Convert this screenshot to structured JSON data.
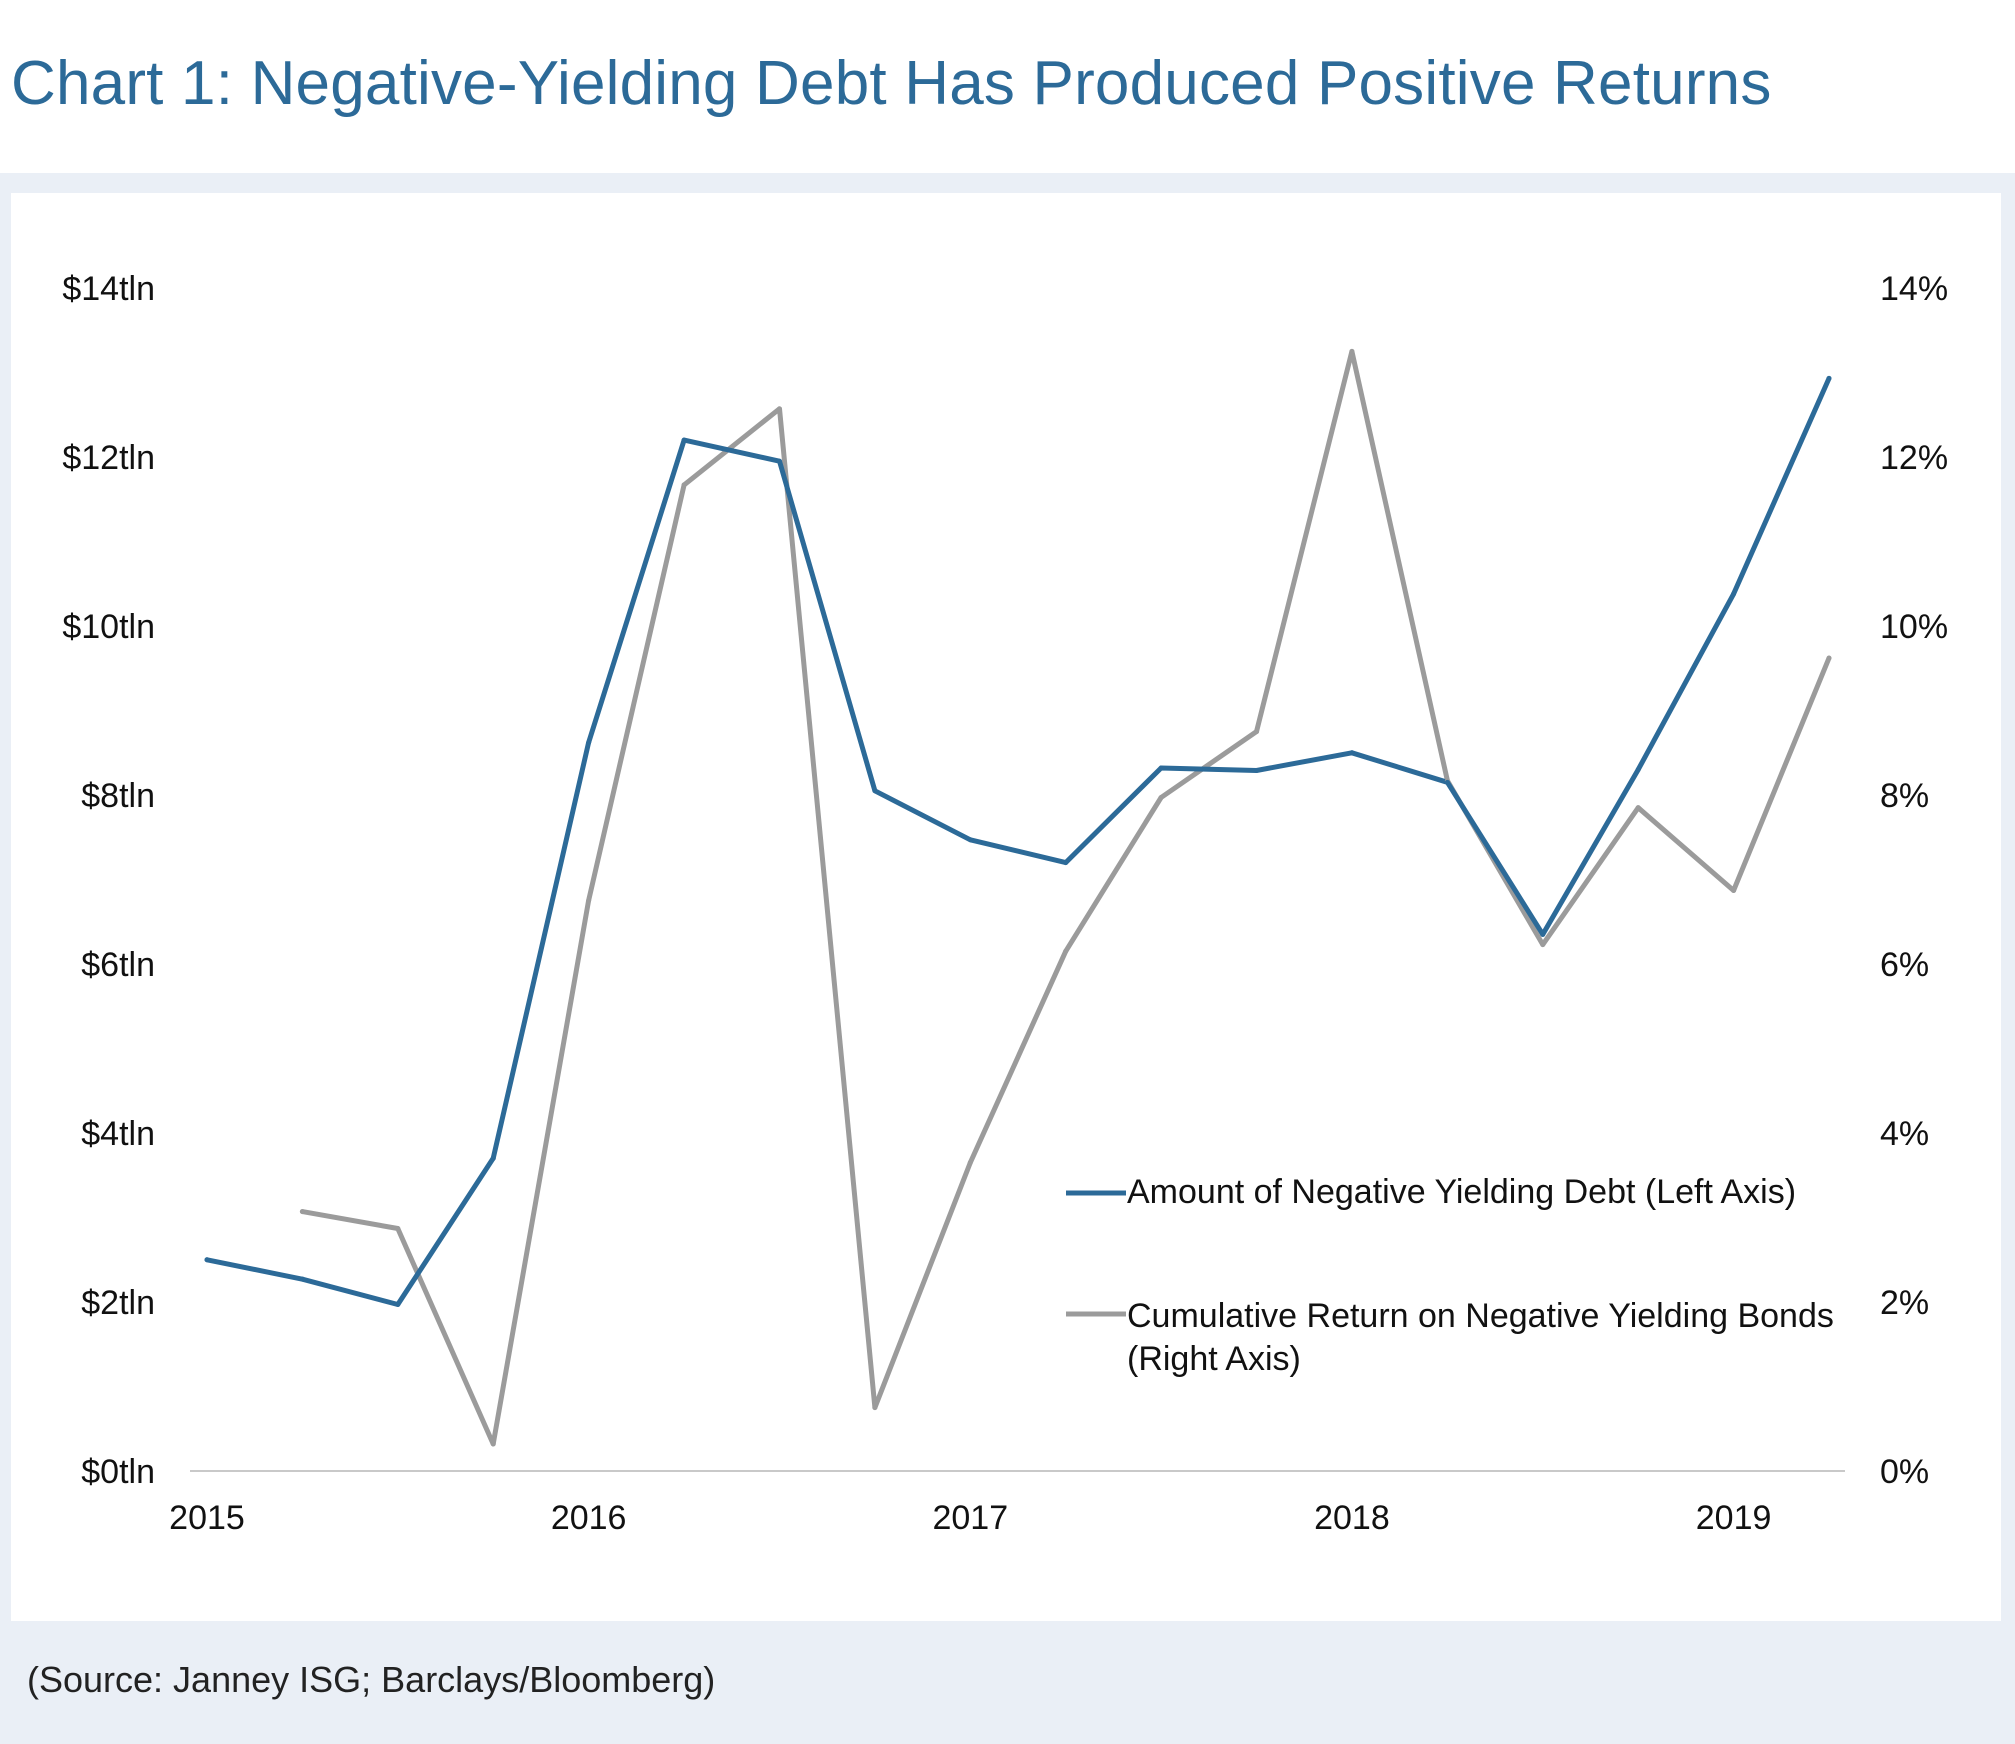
{
  "title": "Chart 1:  Negative-Yielding Debt Has Produced Positive Returns",
  "source": "(Source: Janney ISG; Barclays/Bloomberg)",
  "colors": {
    "title": "#2c6a98",
    "debt": "#2c6a98",
    "returns": "#9b9b9b",
    "frame": "#eaeff6",
    "baseline": "#c9c9c9"
  },
  "chart_data": {
    "type": "line",
    "title": "Chart 1:  Negative-Yielding Debt Has Produced Positive Returns",
    "x_ticks": [
      "2015",
      "2016",
      "2017",
      "2018",
      "2019"
    ],
    "x_tick_values": [
      2015,
      2016,
      2017,
      2018,
      2019
    ],
    "x_range": [
      2015,
      2019.25
    ],
    "left_axis": {
      "ticks": [
        "$0tln",
        "$2tln",
        "$4tln",
        "$6tln",
        "$8tln",
        "$10tln",
        "$12tln",
        "$14tln"
      ],
      "range": [
        0,
        14
      ],
      "unit": "trillion USD"
    },
    "right_axis": {
      "ticks": [
        "0%",
        "2%",
        "4%",
        "6%",
        "8%",
        "10%",
        "12%",
        "14%"
      ],
      "range": [
        0,
        14
      ],
      "unit": "percent"
    },
    "legend": {
      "placement": "bottom-right"
    },
    "series": [
      {
        "name": "Amount of Negative Yielding Debt (Left Axis)",
        "axis": "left",
        "x": [
          2015.0,
          2015.25,
          2015.5,
          2015.75,
          2016.0,
          2016.25,
          2016.5,
          2016.75,
          2017.0,
          2017.25,
          2017.5,
          2017.75,
          2018.0,
          2018.25,
          2018.5,
          2018.75,
          2019.0,
          2019.25
        ],
        "values": [
          2.5,
          2.27,
          1.97,
          3.7,
          8.62,
          12.2,
          11.95,
          8.05,
          7.47,
          7.2,
          8.32,
          8.29,
          8.5,
          8.15,
          6.35,
          8.3,
          10.38,
          12.93
        ]
      },
      {
        "name": "Cumulative Return on Negative Yielding Bonds (Right Axis)",
        "legend_lines": [
          "Cumulative Return on Negative Yielding Bonds",
          "(Right Axis)"
        ],
        "axis": "right",
        "x": [
          2015.25,
          2015.5,
          2015.75,
          2016.0,
          2016.25,
          2016.5,
          2016.75,
          2017.0,
          2017.25,
          2017.5,
          2017.75,
          2018.0,
          2018.25,
          2018.5,
          2018.75,
          2019.0,
          2019.25
        ],
        "values": [
          3.07,
          2.87,
          0.32,
          6.75,
          11.67,
          12.57,
          0.75,
          3.65,
          6.15,
          7.97,
          8.75,
          13.25,
          8.17,
          6.23,
          7.85,
          6.87,
          9.62
        ]
      }
    ]
  }
}
